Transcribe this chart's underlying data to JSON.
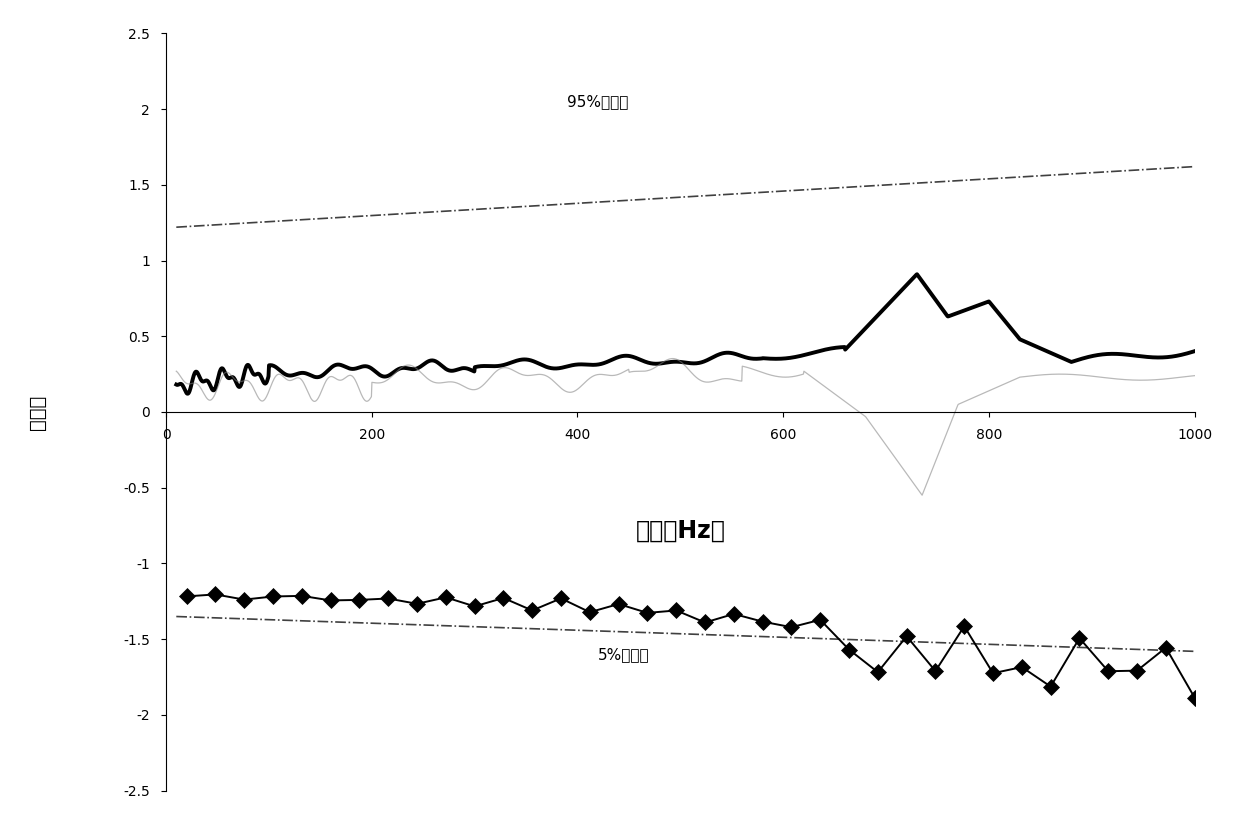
{
  "xlim": [
    0,
    1000
  ],
  "ylim": [
    -2.5,
    2.5
  ],
  "yticks": [
    -2.5,
    -2.0,
    -1.5,
    -1.0,
    -0.5,
    0,
    0.5,
    1.0,
    1.5,
    2.0,
    2.5
  ],
  "xticks": [
    0,
    200,
    400,
    600,
    800,
    1000
  ],
  "xlabel": "频率（Hz）",
  "ylabel": "差异度",
  "percentile95_label": "95%分位点",
  "percentile5_label": "5%分位点",
  "background_color": "#ffffff",
  "text_color": "#000000",
  "p95_start": 1.22,
  "p95_end": 1.62,
  "p5_start": -1.35,
  "p5_end": -1.58
}
